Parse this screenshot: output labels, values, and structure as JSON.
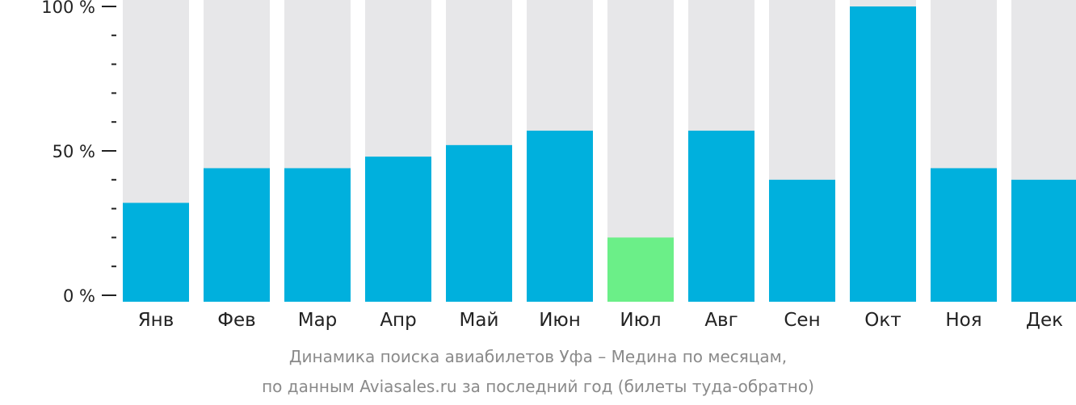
{
  "chart_data": {
    "type": "bar",
    "categories": [
      "Янв",
      "Фев",
      "Мар",
      "Апр",
      "Май",
      "Июн",
      "Июл",
      "Авг",
      "Сен",
      "Окт",
      "Ноя",
      "Дек"
    ],
    "values": [
      32,
      44,
      44,
      48,
      52,
      57,
      20,
      57,
      40,
      100,
      44,
      40
    ],
    "highlight_index": 6,
    "ylim": [
      0,
      100
    ],
    "ytick_labels": [
      "100 %",
      "50 %",
      "0 %"
    ],
    "ytick_values": [
      100,
      50,
      0
    ],
    "minor_tick_step": 10,
    "colors": {
      "bar": "#00b0dd",
      "bar_highlight": "#6bef88",
      "background": "#e7e7e9",
      "axis": "#222222"
    }
  },
  "caption": {
    "line1": "Динамика поиска авиабилетов Уфа – Медина по месяцам,",
    "line2": "по данным Aviasales.ru за последний год (билеты туда-обратно)"
  }
}
